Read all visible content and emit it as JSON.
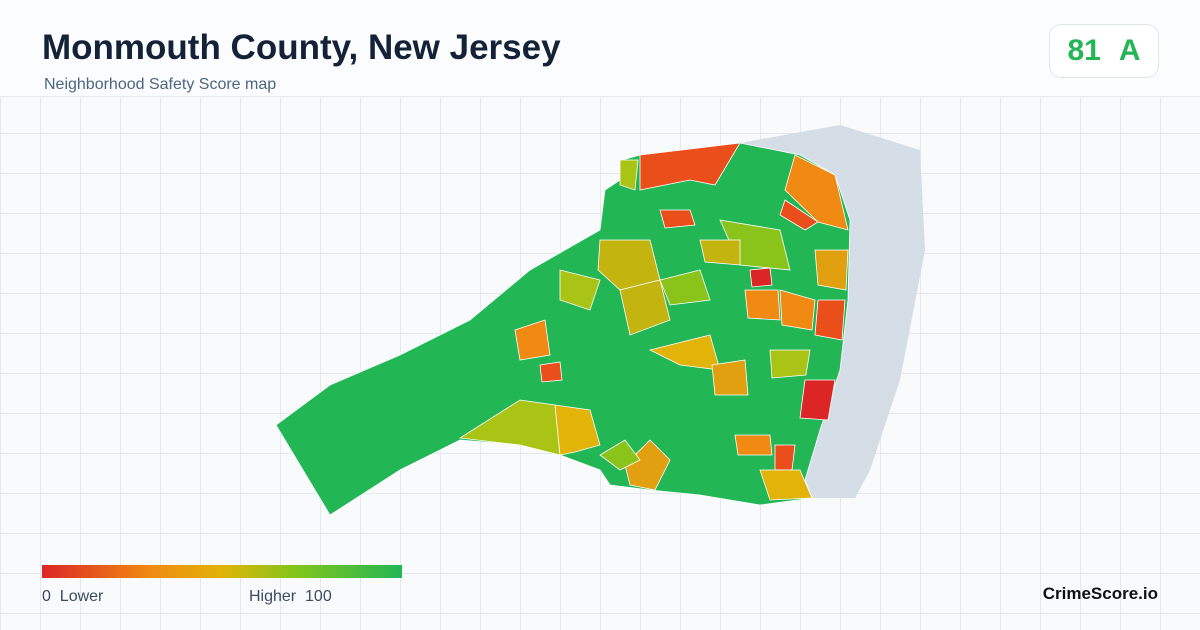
{
  "header": {
    "title": "Monmouth County, New Jersey",
    "subtitle": "Neighborhood Safety Score map"
  },
  "score": {
    "value": 81,
    "grade": "A"
  },
  "legend": {
    "min": 0,
    "min_label": "Lower",
    "max_label": "Higher",
    "max": 100
  },
  "footer": {
    "brand": "CrimeScore.io"
  }
}
